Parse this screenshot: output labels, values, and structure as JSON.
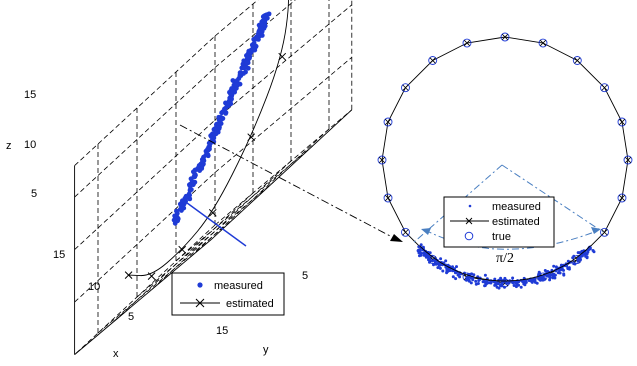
{
  "chart_data": [
    {
      "type": "scatter",
      "projection": "3d",
      "xlabel": "x",
      "ylabel": "y",
      "zlabel": "z",
      "x_ticks": [
        "15",
        "10",
        "5"
      ],
      "y_ticks": [
        "5",
        "10",
        "15"
      ],
      "z_ticks": [
        "5",
        "10",
        "15"
      ],
      "grid": true,
      "legend": {
        "placement": "bottom-right",
        "entries": [
          "measured",
          "estimated"
        ]
      },
      "series": [
        {
          "name": "measured",
          "marker": "dot",
          "color": "#1f3bd6",
          "description_points": [
            {
              "x": 9,
              "y": 4,
              "z": 4
            },
            {
              "x": 7,
              "y": 5,
              "z": 7
            },
            {
              "x": 5,
              "y": 6,
              "z": 10
            },
            {
              "x": 3,
              "y": 7,
              "z": 13
            },
            {
              "x": 1,
              "y": 8,
              "z": 16
            }
          ]
        },
        {
          "name": "estimated",
          "marker": "x",
          "color": "#000000",
          "points": [
            {
              "x": 14,
              "y": 3,
              "z": 3
            },
            {
              "x": 13,
              "y": 5,
              "z": 1
            },
            {
              "x": 12,
              "y": 8,
              "z": 1
            },
            {
              "x": 11,
              "y": 11,
              "z": 2
            },
            {
              "x": 9,
              "y": 14,
              "z": 6
            },
            {
              "x": 6,
              "y": 15,
              "z": 11
            },
            {
              "x": 3,
              "y": 13,
              "z": 16
            },
            {
              "x": 1,
              "y": 10,
              "z": 18
            }
          ]
        }
      ]
    },
    {
      "type": "scatter",
      "projection": "2d",
      "legend": {
        "placement": "center",
        "entries": [
          "measured",
          "estimated",
          "true"
        ]
      },
      "annotation": "π/2",
      "circle_points": 20,
      "arc_degrees": 90,
      "series": [
        {
          "name": "measured",
          "marker": "dot",
          "color": "#1f3bd6"
        },
        {
          "name": "estimated",
          "marker": "x",
          "color": "#000000"
        },
        {
          "name": "true",
          "marker": "circle",
          "color": "#1f3bd6"
        }
      ]
    }
  ]
}
